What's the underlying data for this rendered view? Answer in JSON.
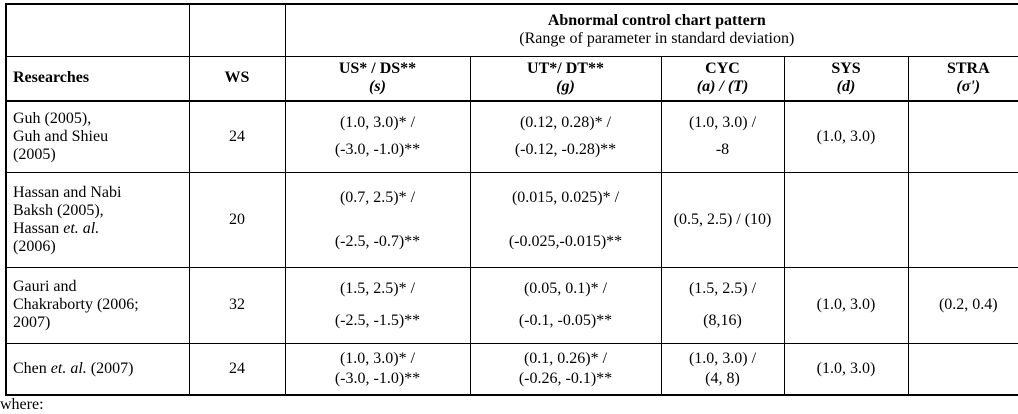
{
  "header": {
    "title": "Abnormal control chart pattern",
    "subtitle": "(Range of parameter in standard deviation)",
    "col_researches": "Researches",
    "col_ws": "WS",
    "cols": [
      {
        "label": "US* / DS**",
        "param": "(s)"
      },
      {
        "label": "UT*/ DT**",
        "param": "(g)"
      },
      {
        "label": "CYC",
        "param": "(a) / (T)"
      },
      {
        "label": "SYS",
        "param": "(d)"
      },
      {
        "label": "STRA",
        "param": "(σ')"
      }
    ]
  },
  "rows": [
    {
      "research": [
        "Guh (2005),",
        "Guh and Shieu",
        "(2005)"
      ],
      "ws": "24",
      "us_ds": [
        "(1.0, 3.0)* /",
        "(-3.0, -1.0)**"
      ],
      "ut_dt": [
        "(0.12, 0.28)* /",
        "(-0.12, -0.28)**"
      ],
      "cyc": [
        "(1.0, 3.0) /",
        "-8"
      ],
      "sys": "(1.0, 3.0)",
      "stra": ""
    },
    {
      "research": [
        "Hassan and Nabi",
        "Baksh (2005),",
        "Hassan",
        "et. al.",
        "(2006)"
      ],
      "ws": "20",
      "us_ds": [
        "(0.7, 2.5)* /",
        "(-2.5, -0.7)**"
      ],
      "ut_dt": [
        "(0.015, 0.025)* /",
        "(-0.025,-0.015)**"
      ],
      "cyc": [
        "(0.5, 2.5) / (10)"
      ],
      "sys": "",
      "stra": ""
    },
    {
      "research": [
        "Gauri and",
        "Chakraborty (2006;",
        "2007)"
      ],
      "ws": "32",
      "us_ds": [
        "(1.5, 2.5)* /",
        "(-2.5, -1.5)**"
      ],
      "ut_dt": [
        "(0.05, 0.1)* /",
        "(-0.1, -0.05)**"
      ],
      "cyc": [
        "(1.5, 2.5) /",
        "(8,16)"
      ],
      "sys": "(1.0, 3.0)",
      "stra": "(0.2, 0.4)"
    },
    {
      "research": [
        "Chen",
        "et. al.",
        "(2007)"
      ],
      "ws": "24",
      "us_ds": [
        "(1.0, 3.0)* /",
        "(-3.0, -1.0)**"
      ],
      "ut_dt": [
        "(0.1, 0.26)* /",
        "(-0.26, -0.1)**"
      ],
      "cyc": [
        "(1.0, 3.0) /",
        "(4, 8)"
      ],
      "sys": "(1.0, 3.0)",
      "stra": ""
    }
  ],
  "footer_cut": "where:"
}
